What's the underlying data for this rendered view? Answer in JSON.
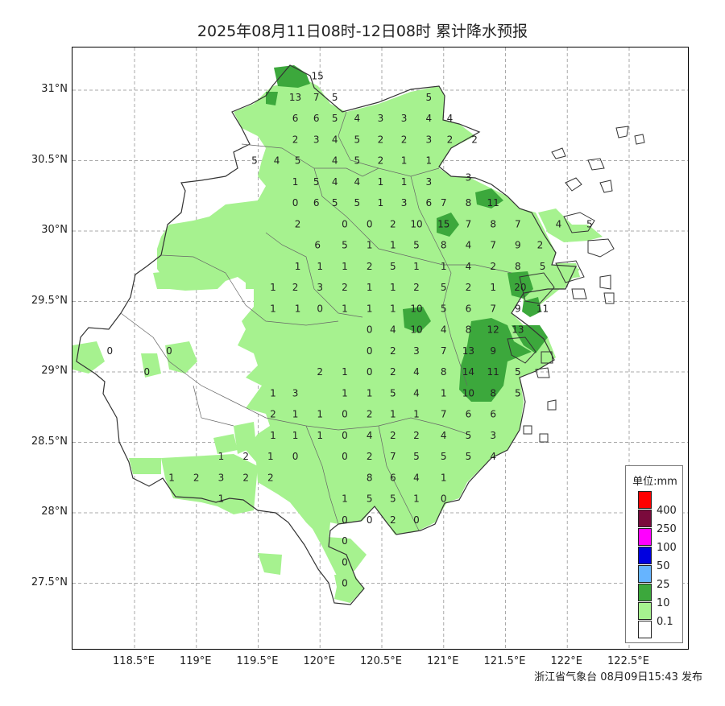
{
  "title": "2025年08月11日08时-12日08时 累计降水预报",
  "footer": "浙江省气象台 08月09日15:43 发布",
  "lat_labels": [
    "31°N",
    "30.5°N",
    "30°N",
    "29.5°N",
    "29°N",
    "28.5°N",
    "28°N",
    "27.5°N"
  ],
  "lon_labels": [
    "118.5°E",
    "119°E",
    "119.5°E",
    "120°E",
    "120.5°E",
    "121°E",
    "121.5°E",
    "122°E",
    "122.5°E"
  ],
  "legend": {
    "title": "单位:mm",
    "ticks": [
      "400",
      "250",
      "100",
      "50",
      "25",
      "10",
      "0.1"
    ],
    "colors": [
      "#ff0000",
      "#7a0a3c",
      "#ff00ff",
      "#0000e0",
      "#66b4ff",
      "#3ca83c",
      "#a6f28f",
      "#ffffff"
    ]
  },
  "colors": {
    "light_rain": "#a6f28f",
    "moderate_rain": "#3ca83c",
    "border": "#333333",
    "grid": "#aaaaaa"
  },
  "stations": [
    {
      "v": "15",
      "lon": 119.98,
      "lat": 31.1
    },
    {
      "v": "13",
      "lon": 119.8,
      "lat": 30.95
    },
    {
      "v": "7",
      "lon": 119.97,
      "lat": 30.95
    },
    {
      "v": "5",
      "lon": 120.12,
      "lat": 30.95
    },
    {
      "v": "5",
      "lon": 120.88,
      "lat": 30.95
    },
    {
      "v": "6",
      "lon": 119.8,
      "lat": 30.8
    },
    {
      "v": "6",
      "lon": 119.97,
      "lat": 30.8
    },
    {
      "v": "5",
      "lon": 120.12,
      "lat": 30.8
    },
    {
      "v": "4",
      "lon": 120.3,
      "lat": 30.8
    },
    {
      "v": "3",
      "lon": 120.49,
      "lat": 30.8
    },
    {
      "v": "3",
      "lon": 120.68,
      "lat": 30.8
    },
    {
      "v": "4",
      "lon": 120.88,
      "lat": 30.8
    },
    {
      "v": "4",
      "lon": 121.05,
      "lat": 30.8
    },
    {
      "v": "2",
      "lon": 119.8,
      "lat": 30.65
    },
    {
      "v": "3",
      "lon": 119.97,
      "lat": 30.65
    },
    {
      "v": "4",
      "lon": 120.12,
      "lat": 30.65
    },
    {
      "v": "5",
      "lon": 120.3,
      "lat": 30.65
    },
    {
      "v": "2",
      "lon": 120.49,
      "lat": 30.65
    },
    {
      "v": "2",
      "lon": 120.68,
      "lat": 30.65
    },
    {
      "v": "3",
      "lon": 120.88,
      "lat": 30.65
    },
    {
      "v": "2",
      "lon": 121.05,
      "lat": 30.65
    },
    {
      "v": "2",
      "lon": 121.25,
      "lat": 30.65
    },
    {
      "v": "5",
      "lon": 119.47,
      "lat": 30.5
    },
    {
      "v": "4",
      "lon": 119.65,
      "lat": 30.5
    },
    {
      "v": "5",
      "lon": 119.82,
      "lat": 30.5
    },
    {
      "v": "4",
      "lon": 120.12,
      "lat": 30.5
    },
    {
      "v": "5",
      "lon": 120.3,
      "lat": 30.5
    },
    {
      "v": "2",
      "lon": 120.49,
      "lat": 30.5
    },
    {
      "v": "1",
      "lon": 120.68,
      "lat": 30.5
    },
    {
      "v": "1",
      "lon": 120.88,
      "lat": 30.5
    },
    {
      "v": "1",
      "lon": 119.8,
      "lat": 30.35
    },
    {
      "v": "5",
      "lon": 119.97,
      "lat": 30.35
    },
    {
      "v": "4",
      "lon": 120.12,
      "lat": 30.35
    },
    {
      "v": "4",
      "lon": 120.3,
      "lat": 30.35
    },
    {
      "v": "1",
      "lon": 120.49,
      "lat": 30.35
    },
    {
      "v": "1",
      "lon": 120.68,
      "lat": 30.35
    },
    {
      "v": "3",
      "lon": 120.88,
      "lat": 30.35
    },
    {
      "v": "3",
      "lon": 121.2,
      "lat": 30.38
    },
    {
      "v": "0",
      "lon": 119.8,
      "lat": 30.2
    },
    {
      "v": "6",
      "lon": 119.97,
      "lat": 30.2
    },
    {
      "v": "5",
      "lon": 120.12,
      "lat": 30.2
    },
    {
      "v": "5",
      "lon": 120.3,
      "lat": 30.2
    },
    {
      "v": "1",
      "lon": 120.49,
      "lat": 30.2
    },
    {
      "v": "3",
      "lon": 120.68,
      "lat": 30.2
    },
    {
      "v": "6",
      "lon": 120.88,
      "lat": 30.2
    },
    {
      "v": "7",
      "lon": 121.0,
      "lat": 30.2
    },
    {
      "v": "8",
      "lon": 121.2,
      "lat": 30.2
    },
    {
      "v": "11",
      "lon": 121.4,
      "lat": 30.2
    },
    {
      "v": "2",
      "lon": 119.82,
      "lat": 30.05
    },
    {
      "v": "0",
      "lon": 120.2,
      "lat": 30.05
    },
    {
      "v": "0",
      "lon": 120.4,
      "lat": 30.05
    },
    {
      "v": "2",
      "lon": 120.59,
      "lat": 30.05
    },
    {
      "v": "10",
      "lon": 120.78,
      "lat": 30.05
    },
    {
      "v": "15",
      "lon": 121.0,
      "lat": 30.05
    },
    {
      "v": "7",
      "lon": 121.2,
      "lat": 30.05
    },
    {
      "v": "8",
      "lon": 121.4,
      "lat": 30.05
    },
    {
      "v": "7",
      "lon": 121.6,
      "lat": 30.05
    },
    {
      "v": "4",
      "lon": 121.93,
      "lat": 30.05
    },
    {
      "v": "5",
      "lon": 122.18,
      "lat": 30.05
    },
    {
      "v": "6",
      "lon": 119.98,
      "lat": 29.9
    },
    {
      "v": "5",
      "lon": 120.2,
      "lat": 29.9
    },
    {
      "v": "1",
      "lon": 120.4,
      "lat": 29.9
    },
    {
      "v": "1",
      "lon": 120.59,
      "lat": 29.9
    },
    {
      "v": "5",
      "lon": 120.78,
      "lat": 29.9
    },
    {
      "v": "8",
      "lon": 121.0,
      "lat": 29.9
    },
    {
      "v": "4",
      "lon": 121.2,
      "lat": 29.9
    },
    {
      "v": "7",
      "lon": 121.4,
      "lat": 29.9
    },
    {
      "v": "9",
      "lon": 121.6,
      "lat": 29.9
    },
    {
      "v": "2",
      "lon": 121.78,
      "lat": 29.9
    },
    {
      "v": "1",
      "lon": 119.82,
      "lat": 29.75
    },
    {
      "v": "1",
      "lon": 120.0,
      "lat": 29.75
    },
    {
      "v": "1",
      "lon": 120.2,
      "lat": 29.75
    },
    {
      "v": "2",
      "lon": 120.4,
      "lat": 29.75
    },
    {
      "v": "5",
      "lon": 120.59,
      "lat": 29.75
    },
    {
      "v": "1",
      "lon": 120.78,
      "lat": 29.75
    },
    {
      "v": "1",
      "lon": 121.0,
      "lat": 29.75
    },
    {
      "v": "4",
      "lon": 121.2,
      "lat": 29.75
    },
    {
      "v": "2",
      "lon": 121.4,
      "lat": 29.75
    },
    {
      "v": "8",
      "lon": 121.6,
      "lat": 29.75
    },
    {
      "v": "5",
      "lon": 121.8,
      "lat": 29.75
    },
    {
      "v": "1",
      "lon": 119.62,
      "lat": 29.6
    },
    {
      "v": "2",
      "lon": 119.8,
      "lat": 29.6
    },
    {
      "v": "3",
      "lon": 120.0,
      "lat": 29.6
    },
    {
      "v": "2",
      "lon": 120.2,
      "lat": 29.6
    },
    {
      "v": "1",
      "lon": 120.4,
      "lat": 29.6
    },
    {
      "v": "1",
      "lon": 120.59,
      "lat": 29.6
    },
    {
      "v": "2",
      "lon": 120.78,
      "lat": 29.6
    },
    {
      "v": "5",
      "lon": 121.0,
      "lat": 29.6
    },
    {
      "v": "2",
      "lon": 121.2,
      "lat": 29.6
    },
    {
      "v": "1",
      "lon": 121.4,
      "lat": 29.6
    },
    {
      "v": "20",
      "lon": 121.62,
      "lat": 29.6
    },
    {
      "v": "1",
      "lon": 119.62,
      "lat": 29.45
    },
    {
      "v": "1",
      "lon": 119.82,
      "lat": 29.45
    },
    {
      "v": "0",
      "lon": 120.0,
      "lat": 29.45
    },
    {
      "v": "1",
      "lon": 120.2,
      "lat": 29.45
    },
    {
      "v": "1",
      "lon": 120.4,
      "lat": 29.45
    },
    {
      "v": "1",
      "lon": 120.59,
      "lat": 29.45
    },
    {
      "v": "10",
      "lon": 120.78,
      "lat": 29.45
    },
    {
      "v": "5",
      "lon": 121.0,
      "lat": 29.45
    },
    {
      "v": "6",
      "lon": 121.2,
      "lat": 29.45
    },
    {
      "v": "7",
      "lon": 121.4,
      "lat": 29.45
    },
    {
      "v": "9",
      "lon": 121.6,
      "lat": 29.45
    },
    {
      "v": "11",
      "lon": 121.8,
      "lat": 29.45
    },
    {
      "v": "0",
      "lon": 120.4,
      "lat": 29.3
    },
    {
      "v": "4",
      "lon": 120.59,
      "lat": 29.3
    },
    {
      "v": "10",
      "lon": 120.78,
      "lat": 29.3
    },
    {
      "v": "4",
      "lon": 121.0,
      "lat": 29.3
    },
    {
      "v": "8",
      "lon": 121.2,
      "lat": 29.3
    },
    {
      "v": "12",
      "lon": 121.4,
      "lat": 29.3
    },
    {
      "v": "13",
      "lon": 121.6,
      "lat": 29.3
    },
    {
      "v": "0",
      "lon": 118.3,
      "lat": 29.15
    },
    {
      "v": "0",
      "lon": 118.78,
      "lat": 29.15
    },
    {
      "v": "0",
      "lon": 120.4,
      "lat": 29.15
    },
    {
      "v": "2",
      "lon": 120.59,
      "lat": 29.15
    },
    {
      "v": "3",
      "lon": 120.78,
      "lat": 29.15
    },
    {
      "v": "7",
      "lon": 121.0,
      "lat": 29.15
    },
    {
      "v": "13",
      "lon": 121.2,
      "lat": 29.15
    },
    {
      "v": "9",
      "lon": 121.4,
      "lat": 29.15
    },
    {
      "v": "0",
      "lon": 118.6,
      "lat": 29.0
    },
    {
      "v": "2",
      "lon": 120.0,
      "lat": 29.0
    },
    {
      "v": "1",
      "lon": 120.2,
      "lat": 29.0
    },
    {
      "v": "0",
      "lon": 120.4,
      "lat": 29.0
    },
    {
      "v": "2",
      "lon": 120.59,
      "lat": 29.0
    },
    {
      "v": "4",
      "lon": 120.78,
      "lat": 29.0
    },
    {
      "v": "8",
      "lon": 121.0,
      "lat": 29.0
    },
    {
      "v": "14",
      "lon": 121.2,
      "lat": 29.0
    },
    {
      "v": "11",
      "lon": 121.4,
      "lat": 29.0
    },
    {
      "v": "5",
      "lon": 121.6,
      "lat": 29.0
    },
    {
      "v": "1",
      "lon": 119.62,
      "lat": 28.85
    },
    {
      "v": "3",
      "lon": 119.8,
      "lat": 28.85
    },
    {
      "v": "1",
      "lon": 120.2,
      "lat": 28.85
    },
    {
      "v": "1",
      "lon": 120.4,
      "lat": 28.85
    },
    {
      "v": "5",
      "lon": 120.59,
      "lat": 28.85
    },
    {
      "v": "4",
      "lon": 120.78,
      "lat": 28.85
    },
    {
      "v": "1",
      "lon": 121.0,
      "lat": 28.85
    },
    {
      "v": "10",
      "lon": 121.2,
      "lat": 28.85
    },
    {
      "v": "8",
      "lon": 121.4,
      "lat": 28.85
    },
    {
      "v": "5",
      "lon": 121.6,
      "lat": 28.85
    },
    {
      "v": "2",
      "lon": 119.62,
      "lat": 28.7
    },
    {
      "v": "1",
      "lon": 119.8,
      "lat": 28.7
    },
    {
      "v": "1",
      "lon": 120.0,
      "lat": 28.7
    },
    {
      "v": "0",
      "lon": 120.2,
      "lat": 28.7
    },
    {
      "v": "2",
      "lon": 120.4,
      "lat": 28.7
    },
    {
      "v": "1",
      "lon": 120.59,
      "lat": 28.7
    },
    {
      "v": "1",
      "lon": 120.78,
      "lat": 28.7
    },
    {
      "v": "7",
      "lon": 121.0,
      "lat": 28.7
    },
    {
      "v": "6",
      "lon": 121.2,
      "lat": 28.7
    },
    {
      "v": "6",
      "lon": 121.4,
      "lat": 28.7
    },
    {
      "v": "1",
      "lon": 119.62,
      "lat": 28.55
    },
    {
      "v": "1",
      "lon": 119.8,
      "lat": 28.55
    },
    {
      "v": "1",
      "lon": 120.0,
      "lat": 28.55
    },
    {
      "v": "0",
      "lon": 120.2,
      "lat": 28.55
    },
    {
      "v": "4",
      "lon": 120.4,
      "lat": 28.55
    },
    {
      "v": "2",
      "lon": 120.59,
      "lat": 28.55
    },
    {
      "v": "2",
      "lon": 120.78,
      "lat": 28.55
    },
    {
      "v": "4",
      "lon": 121.0,
      "lat": 28.55
    },
    {
      "v": "5",
      "lon": 121.2,
      "lat": 28.55
    },
    {
      "v": "3",
      "lon": 121.4,
      "lat": 28.55
    },
    {
      "v": "1",
      "lon": 119.2,
      "lat": 28.4
    },
    {
      "v": "2",
      "lon": 119.4,
      "lat": 28.4
    },
    {
      "v": "1",
      "lon": 119.6,
      "lat": 28.4
    },
    {
      "v": "0",
      "lon": 119.8,
      "lat": 28.4
    },
    {
      "v": "0",
      "lon": 120.2,
      "lat": 28.4
    },
    {
      "v": "2",
      "lon": 120.4,
      "lat": 28.4
    },
    {
      "v": "7",
      "lon": 120.59,
      "lat": 28.4
    },
    {
      "v": "5",
      "lon": 120.78,
      "lat": 28.4
    },
    {
      "v": "5",
      "lon": 121.0,
      "lat": 28.4
    },
    {
      "v": "5",
      "lon": 121.2,
      "lat": 28.4
    },
    {
      "v": "4",
      "lon": 121.4,
      "lat": 28.4
    },
    {
      "v": "1",
      "lon": 118.8,
      "lat": 28.25
    },
    {
      "v": "2",
      "lon": 119.0,
      "lat": 28.25
    },
    {
      "v": "3",
      "lon": 119.2,
      "lat": 28.25
    },
    {
      "v": "2",
      "lon": 119.4,
      "lat": 28.25
    },
    {
      "v": "2",
      "lon": 119.6,
      "lat": 28.25
    },
    {
      "v": "8",
      "lon": 120.4,
      "lat": 28.25
    },
    {
      "v": "6",
      "lon": 120.59,
      "lat": 28.25
    },
    {
      "v": "4",
      "lon": 120.78,
      "lat": 28.25
    },
    {
      "v": "1",
      "lon": 121.0,
      "lat": 28.25
    },
    {
      "v": "1",
      "lon": 119.2,
      "lat": 28.1
    },
    {
      "v": "1",
      "lon": 120.2,
      "lat": 28.1
    },
    {
      "v": "5",
      "lon": 120.4,
      "lat": 28.1
    },
    {
      "v": "5",
      "lon": 120.59,
      "lat": 28.1
    },
    {
      "v": "1",
      "lon": 120.78,
      "lat": 28.1
    },
    {
      "v": "0",
      "lon": 121.0,
      "lat": 28.1
    },
    {
      "v": "0",
      "lon": 120.2,
      "lat": 27.95
    },
    {
      "v": "0",
      "lon": 120.4,
      "lat": 27.95
    },
    {
      "v": "2",
      "lon": 120.59,
      "lat": 27.95
    },
    {
      "v": "0",
      "lon": 120.78,
      "lat": 27.95
    },
    {
      "v": "0",
      "lon": 120.2,
      "lat": 27.8
    },
    {
      "v": "0",
      "lon": 120.2,
      "lat": 27.65
    },
    {
      "v": "0",
      "lon": 120.2,
      "lat": 27.5
    }
  ]
}
